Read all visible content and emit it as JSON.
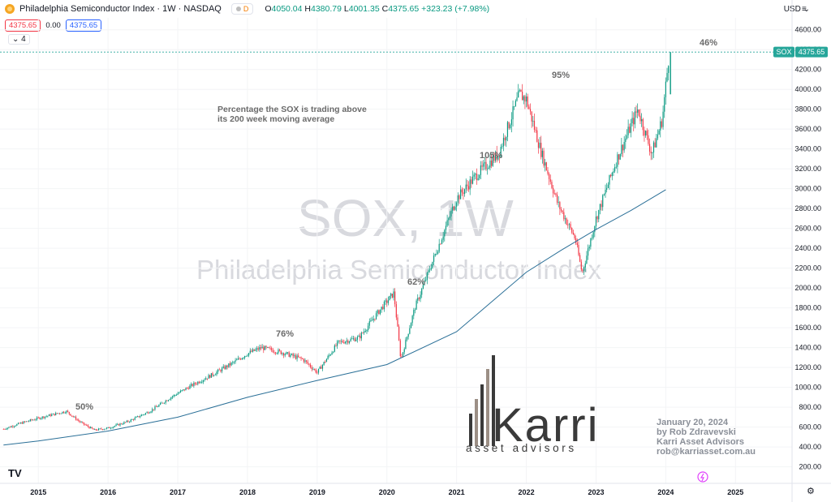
{
  "header": {
    "title": "Philadelphia Semiconductor Index · 1W · NASDAQ",
    "badge": "D",
    "ohlc": {
      "o_label": "O",
      "o": "4050.04",
      "h_label": "H",
      "h": "4380.79",
      "l_label": "L",
      "l": "4001.35",
      "c_label": "C",
      "c": "4375.65",
      "change": "+323.23 (+7.98%)"
    },
    "bid": "4375.65",
    "spread": "0.00",
    "ask": "4375.65",
    "indicator_count": "4",
    "currency": "USD"
  },
  "price_label": {
    "symbol": "SOX",
    "value": "4375.65"
  },
  "watermark": {
    "line1": "SOX, 1W",
    "line2": "Philadelphia Semiconductor Index"
  },
  "info_text": {
    "line1": "Percentage the SOX is trading above",
    "line2": "its 200 week moving average"
  },
  "credit": {
    "line1": "January 20, 2024",
    "line2": "by Rob Zdravevski",
    "line3": "Karri Asset Advisors",
    "line4": "rob@karriasset.com.au"
  },
  "brand": {
    "name": "Karri",
    "tagline": "asset advisors"
  },
  "colors": {
    "up": "#089981",
    "down": "#f23645",
    "ma": "#2a6f97",
    "accent": "#26a69a",
    "watermark": "#d8d9de"
  },
  "chart_data": {
    "type": "line",
    "series": [
      {
        "name": "SOX",
        "x": [
          2014.5,
          2014.75,
          2015.0,
          2015.4,
          2015.6,
          2015.8,
          2016.0,
          2016.3,
          2016.6,
          2016.9,
          2017.2,
          2017.5,
          2017.8,
          2018.0,
          2018.2,
          2018.5,
          2018.8,
          2019.0,
          2019.3,
          2019.6,
          2019.9,
          2020.1,
          2020.2,
          2020.4,
          2020.7,
          2021.0,
          2021.3,
          2021.6,
          2021.9,
          2022.0,
          2022.2,
          2022.45,
          2022.7,
          2022.8,
          2023.0,
          2023.3,
          2023.6,
          2023.8,
          2023.95,
          2024.05
        ],
        "y": [
          580,
          640,
          690,
          760,
          650,
          570,
          590,
          660,
          760,
          900,
          1020,
          1130,
          1250,
          1340,
          1400,
          1350,
          1280,
          1150,
          1450,
          1500,
          1780,
          1950,
          1280,
          1800,
          2350,
          2900,
          3150,
          3350,
          3950,
          3900,
          3400,
          2850,
          2500,
          2150,
          2700,
          3300,
          3800,
          3350,
          3700,
          4375.65
        ]
      },
      {
        "name": "",
        "x": [
          2014.5,
          2015.0,
          2016.0,
          2017.0,
          2018.0,
          2019.0,
          2020.0,
          2021.0,
          2022.0,
          2022.5,
          2023.0,
          2023.5,
          2024.0
        ],
        "y": [
          420,
          460,
          560,
          700,
          900,
          1070,
          1230,
          1560,
          2160,
          2380,
          2590,
          2780,
          2990
        ]
      }
    ],
    "annotations": [
      "50%",
      "76%",
      "62%",
      "105%",
      "95%",
      "46%"
    ],
    "xticks": [
      "2015",
      "2016",
      "2017",
      "2018",
      "2019",
      "2020",
      "2021",
      "2022",
      "2023",
      "2024",
      "2025"
    ],
    "yticks": [
      "4600.00",
      "4400.00",
      "4200.00",
      "4000.00",
      "3800.00",
      "3600.00",
      "3400.00",
      "3200.00",
      "3000.00",
      "2800.00",
      "2600.00",
      "2400.00",
      "2200.00",
      "2000.00",
      "1800.00",
      "1600.00",
      "1400.00",
      "1200.00",
      "1000.00",
      "800.00",
      "600.00",
      "400.00",
      "200.00"
    ],
    "xlim": [
      2014.45,
      2025.8
    ],
    "ylim": [
      50,
      4720
    ]
  }
}
